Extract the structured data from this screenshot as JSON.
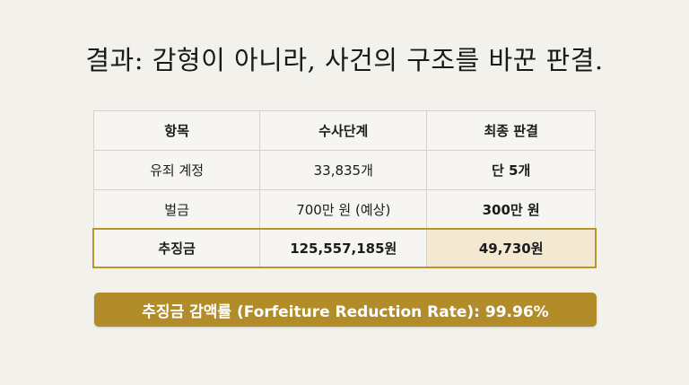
{
  "title": "결과: 감형이 아니라, 사건의 구조를 바꾼 판결.",
  "table": {
    "headers": [
      "항목",
      "수사단계",
      "최종 판결"
    ],
    "rows": [
      [
        "유죄 계정",
        "33,835개",
        "단 5개"
      ],
      [
        "벌금",
        "700만 원 (예상)",
        "300만 원"
      ],
      [
        "추징금",
        "125,557,185원",
        "49,730원"
      ]
    ]
  },
  "banner": "추징금 감액률 (Forfeiture Reduction Rate): 99.96%",
  "colors": {
    "accent": "#b38c2a",
    "investigation_header": "#d7d7d5",
    "final_header": "#efe4c9"
  }
}
